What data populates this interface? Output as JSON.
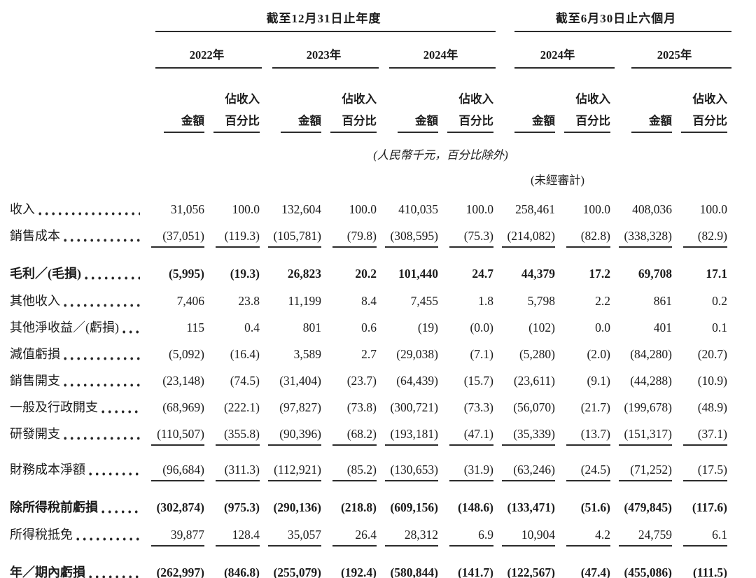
{
  "table": {
    "header": {
      "group_annual": "截至12月31日止年度",
      "group_interim": "截至6月30日止六個月",
      "years": [
        "2022年",
        "2023年",
        "2024年",
        "2024年",
        "2025年"
      ],
      "pct_top_label": "佔收入",
      "amount_label": "金額",
      "pct_label": "百分比",
      "units_note": "(人民幣千元，百分比除外)",
      "unaudited_note": "(未經審計)"
    },
    "rows": [
      {
        "label": "收入",
        "bold": false,
        "underline": "none",
        "values": [
          "31,056",
          "100.0",
          "132,604",
          "100.0",
          "410,035",
          "100.0",
          "258,461",
          "100.0",
          "408,036",
          "100.0"
        ]
      },
      {
        "label": "銷售成本",
        "bold": false,
        "underline": "single",
        "values": [
          "(37,051)",
          "(119.3)",
          "(105,781)",
          "(79.8)",
          "(308,595)",
          "(75.3)",
          "(214,082)",
          "(82.8)",
          "(338,328)",
          "(82.9)"
        ]
      },
      {
        "label": "毛利／(毛損)",
        "bold": true,
        "underline": "none",
        "values": [
          "(5,995)",
          "(19.3)",
          "26,823",
          "20.2",
          "101,440",
          "24.7",
          "44,379",
          "17.2",
          "69,708",
          "17.1"
        ]
      },
      {
        "label": "其他收入",
        "bold": false,
        "underline": "none",
        "values": [
          "7,406",
          "23.8",
          "11,199",
          "8.4",
          "7,455",
          "1.8",
          "5,798",
          "2.2",
          "861",
          "0.2"
        ]
      },
      {
        "label": "其他淨收益／(虧損)",
        "bold": false,
        "underline": "none",
        "values": [
          "115",
          "0.4",
          "801",
          "0.6",
          "(19)",
          "(0.0)",
          "(102)",
          "0.0",
          "401",
          "0.1"
        ]
      },
      {
        "label": "減值虧損",
        "bold": false,
        "underline": "none",
        "values": [
          "(5,092)",
          "(16.4)",
          "3,589",
          "2.7",
          "(29,038)",
          "(7.1)",
          "(5,280)",
          "(2.0)",
          "(84,280)",
          "(20.7)"
        ]
      },
      {
        "label": "銷售開支",
        "bold": false,
        "underline": "none",
        "values": [
          "(23,148)",
          "(74.5)",
          "(31,404)",
          "(23.7)",
          "(64,439)",
          "(15.7)",
          "(23,611)",
          "(9.1)",
          "(44,288)",
          "(10.9)"
        ]
      },
      {
        "label": "一般及行政開支",
        "bold": false,
        "underline": "none",
        "values": [
          "(68,969)",
          "(222.1)",
          "(97,827)",
          "(73.8)",
          "(300,721)",
          "(73.3)",
          "(56,070)",
          "(21.7)",
          "(199,678)",
          "(48.9)"
        ]
      },
      {
        "label": "研發開支",
        "bold": false,
        "underline": "single",
        "values": [
          "(110,507)",
          "(355.8)",
          "(90,396)",
          "(68.2)",
          "(193,181)",
          "(47.1)",
          "(35,339)",
          "(13.7)",
          "(151,317)",
          "(37.1)"
        ]
      },
      {
        "label": "財務成本淨額",
        "bold": false,
        "underline": "single",
        "values": [
          "(96,684)",
          "(311.3)",
          "(112,921)",
          "(85.2)",
          "(130,653)",
          "(31.9)",
          "(63,246)",
          "(24.5)",
          "(71,252)",
          "(17.5)"
        ]
      },
      {
        "label": "除所得稅前虧損",
        "bold": true,
        "underline": "none",
        "values": [
          "(302,874)",
          "(975.3)",
          "(290,136)",
          "(218.8)",
          "(609,156)",
          "(148.6)",
          "(133,471)",
          "(51.6)",
          "(479,845)",
          "(117.6)"
        ]
      },
      {
        "label": "所得稅抵免",
        "bold": false,
        "underline": "single",
        "values": [
          "39,877",
          "128.4",
          "35,057",
          "26.4",
          "28,312",
          "6.9",
          "10,904",
          "4.2",
          "24,759",
          "6.1"
        ]
      },
      {
        "label": "年／期內虧損",
        "bold": true,
        "underline": "double",
        "values": [
          "(262,997)",
          "(846.8)",
          "(255,079)",
          "(192.4)",
          "(580,844)",
          "(141.7)",
          "(122,567)",
          "(47.4)",
          "(455,086)",
          "(111.5)"
        ]
      }
    ]
  }
}
